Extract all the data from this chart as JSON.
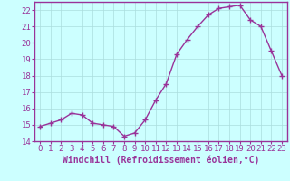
{
  "x": [
    0,
    1,
    2,
    3,
    4,
    5,
    6,
    7,
    8,
    9,
    10,
    11,
    12,
    13,
    14,
    15,
    16,
    17,
    18,
    19,
    20,
    21,
    22,
    23
  ],
  "y": [
    14.9,
    15.1,
    15.3,
    15.7,
    15.6,
    15.1,
    15.0,
    14.9,
    14.3,
    14.5,
    15.3,
    16.5,
    17.5,
    19.3,
    20.2,
    21.0,
    21.7,
    22.1,
    22.2,
    22.3,
    21.4,
    21.0,
    19.5,
    18.0
  ],
  "line_color": "#993399",
  "marker": "+",
  "marker_size": 4,
  "marker_lw": 1.0,
  "line_width": 1.0,
  "bg_color": "#ccffff",
  "grid_color": "#aadddd",
  "axis_color": "#993399",
  "tick_color": "#993399",
  "xlabel": "Windchill (Refroidissement éolien,°C)",
  "ylim": [
    14,
    22.5
  ],
  "xlim": [
    -0.5,
    23.5
  ],
  "yticks": [
    14,
    15,
    16,
    17,
    18,
    19,
    20,
    21,
    22
  ],
  "xticks": [
    0,
    1,
    2,
    3,
    4,
    5,
    6,
    7,
    8,
    9,
    10,
    11,
    12,
    13,
    14,
    15,
    16,
    17,
    18,
    19,
    20,
    21,
    22,
    23
  ],
  "tick_fontsize": 6.5,
  "label_fontsize": 7.0
}
